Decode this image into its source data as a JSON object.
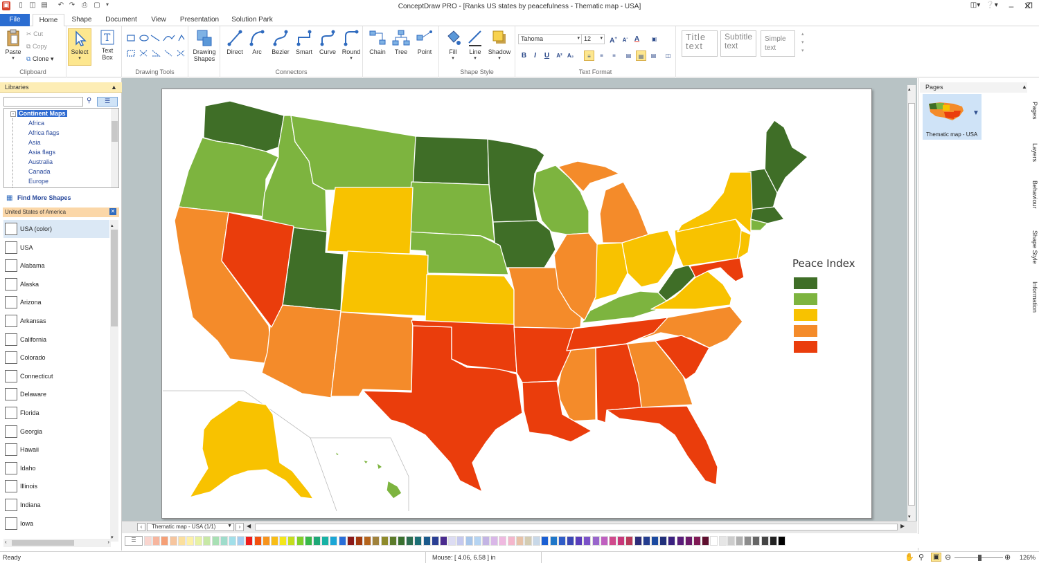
{
  "app": {
    "title": "ConceptDraw PRO - [Ranks US states by peacefulness - Thematic map - USA]"
  },
  "menu": {
    "tabs": [
      "File",
      "Home",
      "Shape",
      "Document",
      "View",
      "Presentation",
      "Solution Park"
    ],
    "active": "Home"
  },
  "ribbon": {
    "clipboard": {
      "paste": "Paste",
      "cut": "Cut",
      "copy": "Copy",
      "clone": "Clone",
      "label": "Clipboard"
    },
    "select": "Select",
    "textbox": [
      "Text",
      "Box"
    ],
    "drawing_tools_label": "Drawing Tools",
    "drawing_shapes": [
      "Drawing",
      "Shapes"
    ],
    "connectors": {
      "direct": "Direct",
      "arc": "Arc",
      "bezier": "Bezier",
      "smart": "Smart",
      "curve": "Curve",
      "round": "Round",
      "label": "Connectors"
    },
    "chain": "Chain",
    "tree": "Tree",
    "point": "Point",
    "shape_style": {
      "fill": "Fill",
      "line": "Line",
      "shadow": "Shadow",
      "label": "Shape Style"
    },
    "text_format": {
      "font": "Tahoma",
      "size": "12",
      "bold": "B",
      "italic": "I",
      "underline": "U",
      "label": "Text Format"
    },
    "styles": [
      {
        "lines": [
          "Title",
          "text"
        ]
      },
      {
        "lines": [
          "Subtitle",
          "text"
        ]
      },
      {
        "lines": [
          "Simple",
          "text"
        ]
      }
    ]
  },
  "libraries": {
    "header": "Libraries",
    "search_value": "",
    "tree_root": "Continent Maps",
    "tree_items": [
      "Africa",
      "Africa flags",
      "Asia",
      "Asia flags",
      "Australia",
      "Canada",
      "Europe"
    ],
    "find_more": "Find More Shapes",
    "library_name": "United States of America",
    "shapes": [
      "USA (color)",
      "USA",
      "Alabama",
      "Alaska",
      "Arizona",
      "Arkansas",
      "California",
      "Colorado",
      "Connecticut",
      "Delaware",
      "Florida",
      "Georgia",
      "Hawaii",
      "Idaho",
      "Illinois",
      "Indiana",
      "Iowa"
    ]
  },
  "map": {
    "legend_title": "Peace Index",
    "legend_colors": [
      "#3f6e27",
      "#7db43f",
      "#f8c200",
      "#f48b2a",
      "#ea3d0c"
    ]
  },
  "pages_panel": {
    "header": "Pages",
    "thumb_label": "Thematic map - USA"
  },
  "right_tabs": [
    "Pages",
    "Layers",
    "Behaviour",
    "Shape Style",
    "Information"
  ],
  "page_nav": {
    "current": "Thematic map - USA (1/1)"
  },
  "status": {
    "ready": "Ready",
    "mouse": "Mouse: [ 4.06, 6.58 ] in",
    "zoom": "126%"
  },
  "palette_colors": [
    "#f9d5cf",
    "#f6b59e",
    "#f59f76",
    "#f6c59e",
    "#fbdf9d",
    "#fdf0a7",
    "#e8f2a4",
    "#c7e8a6",
    "#a8e0b4",
    "#9fdccb",
    "#a2dfe9",
    "#a3cdf0",
    "#ee1c1c",
    "#f2520f",
    "#f7941d",
    "#f8bd16",
    "#f4e61a",
    "#c4dd1d",
    "#7fcf2a",
    "#38b84a",
    "#1ea776",
    "#17b2a5",
    "#1aa6d6",
    "#2a6fd9",
    "#8b1a1a",
    "#a33a10",
    "#b5651d",
    "#a0823c",
    "#8f8b2b",
    "#5c7b2a",
    "#39702f",
    "#2c6d50",
    "#1c6f75",
    "#1b5a8c",
    "#2a3f94",
    "#4a2b8e",
    "#dcdcf3",
    "#c5c9ee",
    "#a8c6ea",
    "#b5d4f2",
    "#c3b4e4",
    "#d9b7e8",
    "#efb9e0",
    "#f4b6cc",
    "#e7c2a8",
    "#d4ccb2",
    "#c8d8e8",
    "#1a5fd3",
    "#1f77c9",
    "#2f5cc7",
    "#3b47b4",
    "#5a3dbb",
    "#7b52c8",
    "#9966cc",
    "#c060c0",
    "#d04a8c",
    "#c8387a",
    "#b83a5a",
    "#2d2d7a",
    "#243d8f",
    "#1b4aa0",
    "#202f7a",
    "#3a2080",
    "#5a1d7a",
    "#6c1a6a",
    "#801a55",
    "#5e0e2e",
    "#ffffff",
    "#e6e6e6",
    "#cccccc",
    "#b0b0b0",
    "#8c8c8c",
    "#666666",
    "#444444",
    "#222222",
    "#000000"
  ]
}
